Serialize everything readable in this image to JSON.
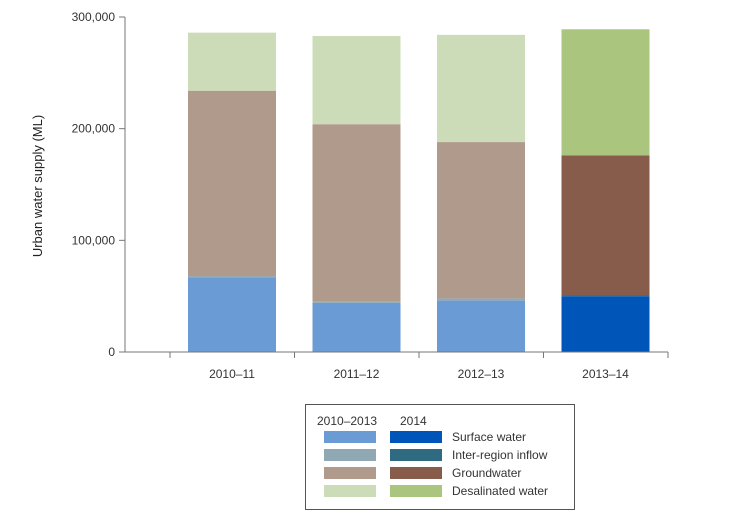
{
  "chart_data": {
    "type": "bar",
    "stacked": true,
    "categories": [
      "2010–11",
      "2011–12",
      "2012–13",
      "2013–14"
    ],
    "ylabel": "Urban water supply (ML)",
    "ylim": [
      0,
      300000
    ],
    "yticks": [
      0,
      100000,
      200000,
      300000
    ],
    "ytick_labels": [
      "0",
      "100,000",
      "200,000",
      "300,000"
    ],
    "series": [
      {
        "name": "Surface water",
        "values": [
          67000,
          44000,
          46000,
          50000
        ]
      },
      {
        "name": "Inter-region inflow",
        "values": [
          1000,
          1000,
          2000,
          1000
        ]
      },
      {
        "name": "Groundwater",
        "values": [
          166000,
          159000,
          140000,
          125000
        ]
      },
      {
        "name": "Desalinated water",
        "values": [
          52000,
          79000,
          96000,
          113000
        ]
      }
    ],
    "palettes": {
      "2010–2013": [
        "#6a9bd4",
        "#8fa8b4",
        "#b09a8c",
        "#cddcb8"
      ],
      "2014": [
        "#0056b8",
        "#2e6a80",
        "#875c4a",
        "#a9c57e"
      ]
    },
    "palette_by_category": [
      "2010–2013",
      "2010–2013",
      "2010–2013",
      "2014"
    ]
  },
  "legend": {
    "heading_left": "2010–2013",
    "heading_right": "2014",
    "items": [
      {
        "label": "Surface water",
        "color_old": "#6a9bd4",
        "color_new": "#0056b8"
      },
      {
        "label": "Inter-region inflow",
        "color_old": "#8fa8b4",
        "color_new": "#2e6a80"
      },
      {
        "label": "Groundwater",
        "color_old": "#b09a8c",
        "color_new": "#875c4a"
      },
      {
        "label": "Desalinated water",
        "color_old": "#cddcb8",
        "color_new": "#a9c57e"
      }
    ]
  }
}
